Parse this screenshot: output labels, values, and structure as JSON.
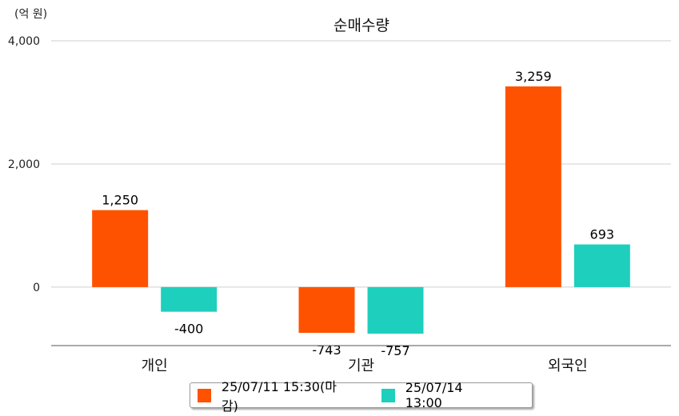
{
  "unit_label": "(억 원)",
  "chart_data": {
    "type": "bar",
    "title": "순매수량",
    "categories": [
      "개인",
      "기관",
      "외국인"
    ],
    "series": [
      {
        "name": "25/07/11 15:30(마감)",
        "color": "#ff5200",
        "values": [
          1250,
          -743,
          3259
        ]
      },
      {
        "name": "25/07/14 13:00",
        "color": "#1ecfbd",
        "values": [
          -400,
          -757,
          693
        ]
      }
    ],
    "data_labels": [
      [
        "1,250",
        "-743",
        "3,259"
      ],
      [
        "-400",
        "-757",
        "693"
      ]
    ],
    "yticks": [
      {
        "value": 0,
        "label": "0"
      },
      {
        "value": 2000,
        "label": "2,000"
      },
      {
        "value": 4000,
        "label": "4,000"
      }
    ],
    "ylim": [
      -950,
      4000
    ],
    "grid": true,
    "legend_position": "bottom"
  }
}
